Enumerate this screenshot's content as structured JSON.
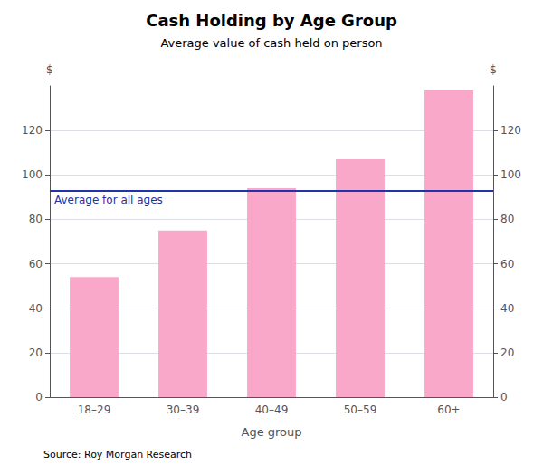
{
  "chart_data": {
    "type": "bar",
    "title": "Cash Holding by Age Group",
    "subtitle": "Average value of cash held on person",
    "categories": [
      "18–29",
      "30–39",
      "40–49",
      "50–59",
      "60+"
    ],
    "values": [
      54,
      75,
      94,
      107,
      138
    ],
    "color": "#F9A8C9",
    "xlabel": "Age group",
    "ylabel": "$",
    "y2label": "$",
    "ylim": [
      0,
      140
    ],
    "yticks": [
      0,
      20,
      40,
      60,
      80,
      100,
      120
    ],
    "y2lim": [
      0,
      140
    ],
    "y2ticks": [
      0,
      20,
      40,
      60,
      80,
      100,
      120
    ],
    "grid": true,
    "annotations": [
      {
        "text": "Average for all ages",
        "y": 93,
        "color": "#2233AA"
      }
    ],
    "source": "Source: Roy Morgan Research"
  }
}
